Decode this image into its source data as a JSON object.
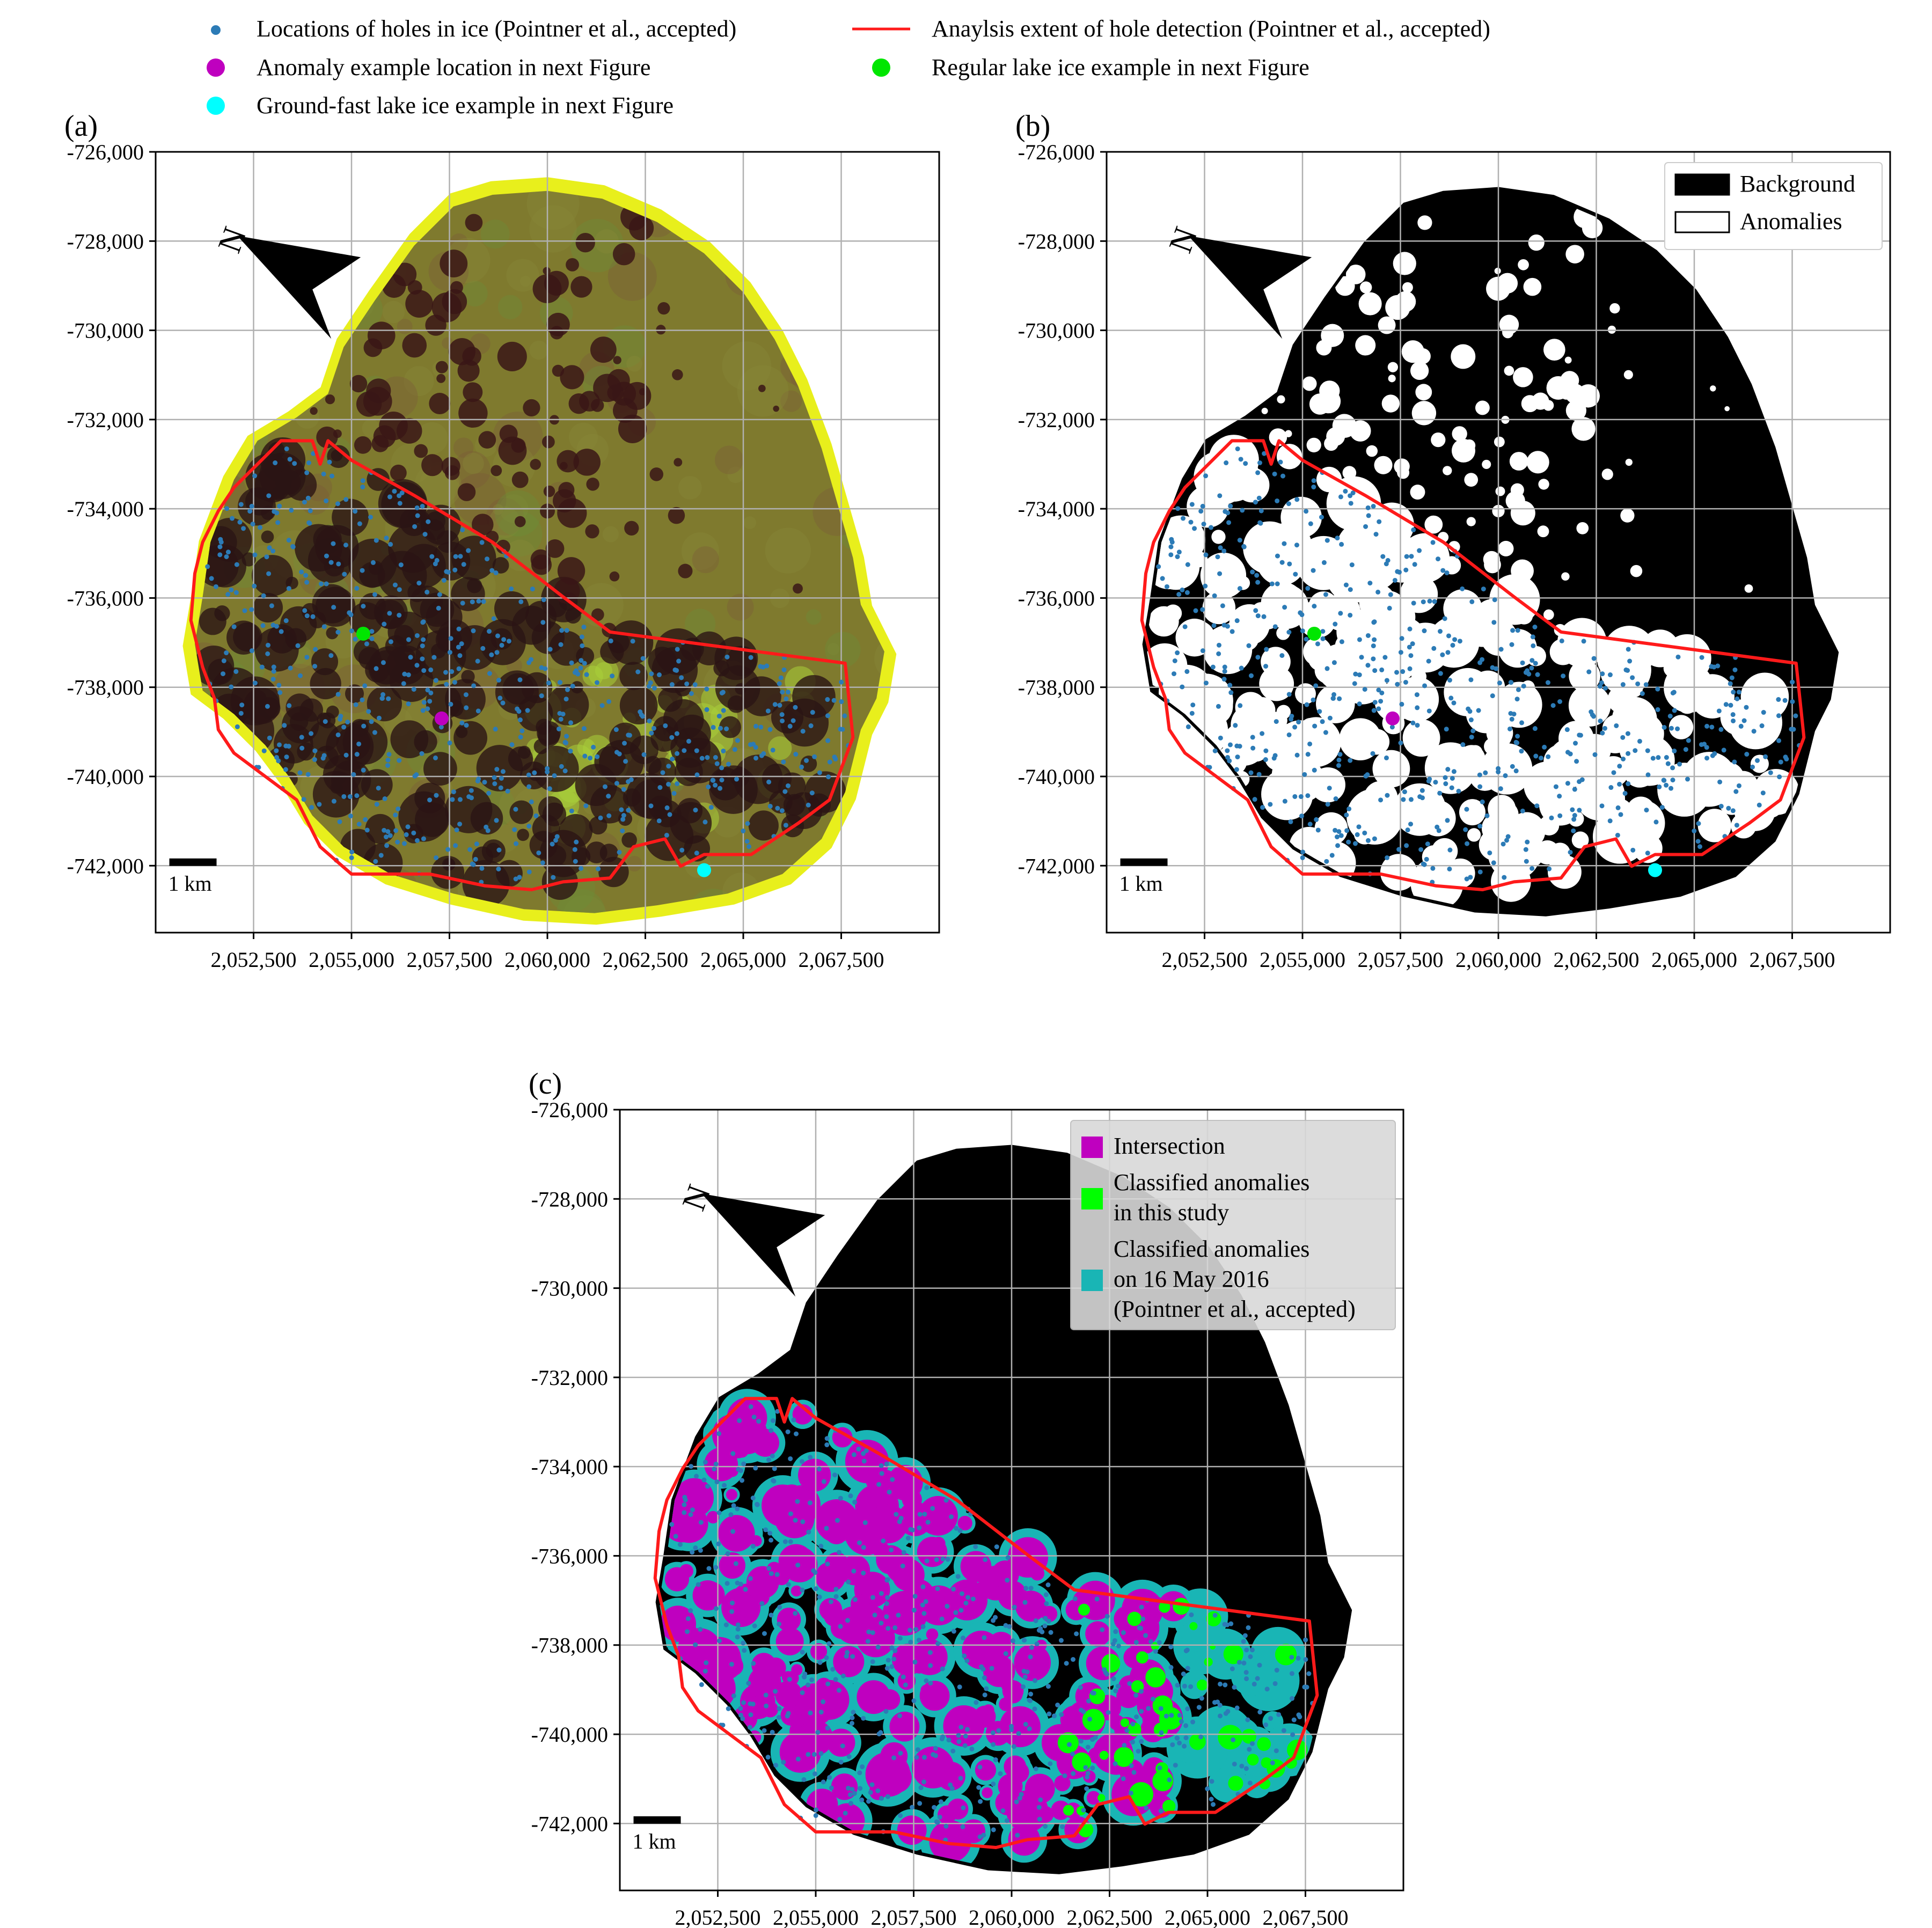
{
  "figure_legend": {
    "items": [
      {
        "label": "Locations of holes in ice (Pointner et al., accepted)",
        "marker": "dot",
        "color": "#2c7bb6"
      },
      {
        "label": "Anaylsis extent of hole detection (Pointner et al., accepted)",
        "marker": "line",
        "color": "#ff1a1a"
      },
      {
        "label": "Anomaly example location in next Figure",
        "marker": "dot",
        "color": "#bf00bf"
      },
      {
        "label": "Regular lake ice example in next Figure",
        "marker": "dot",
        "color": "#00e600"
      },
      {
        "label": "Ground-fast lake ice example in next Figure",
        "marker": "dot",
        "color": "#00ffff"
      }
    ]
  },
  "chart_data": [
    {
      "panel": "(a)",
      "type": "map",
      "background": "rgb composite (yellow/green/dark red)",
      "xlim": [
        2050000,
        2070000
      ],
      "ylim": [
        -743500,
        -726000
      ],
      "xticks": [
        2052500,
        2055000,
        2057500,
        2060000,
        2062500,
        2065000,
        2067500
      ],
      "yticks": [
        -726000,
        -728000,
        -730000,
        -732000,
        -734000,
        -736000,
        -738000,
        -740000,
        -742000
      ],
      "xtick_labels": [
        "2,052,500",
        "2,055,000",
        "2,057,500",
        "2,060,000",
        "2,062,500",
        "2,065,000",
        "2,067,500"
      ],
      "ytick_labels": [
        "-726,000",
        "-728,000",
        "-730,000",
        "-732,000",
        "-734,000",
        "-736,000",
        "-738,000",
        "-740,000",
        "-742,000"
      ],
      "points": [
        {
          "name": "regular-lake-ice",
          "x": 2055300,
          "y": -736800,
          "color": "#00e600"
        },
        {
          "name": "anomaly-example",
          "x": 2057300,
          "y": -738700,
          "color": "#bf00bf"
        },
        {
          "name": "ground-fast-ice",
          "x": 2064000,
          "y": -742100,
          "color": "#00ffff"
        }
      ],
      "scale_bar": "1 km",
      "grid": true
    },
    {
      "panel": "(b)",
      "type": "map",
      "background": "binary classification",
      "xlim": [
        2050000,
        2070000
      ],
      "ylim": [
        -743500,
        -726000
      ],
      "xticks": [
        2052500,
        2055000,
        2057500,
        2060000,
        2062500,
        2065000,
        2067500
      ],
      "yticks": [
        -726000,
        -728000,
        -730000,
        -732000,
        -734000,
        -736000,
        -738000,
        -740000,
        -742000
      ],
      "xtick_labels": [
        "2,052,500",
        "2,055,000",
        "2,057,500",
        "2,060,000",
        "2,062,500",
        "2,065,000",
        "2,067,500"
      ],
      "ytick_labels": [
        "-726,000",
        "-728,000",
        "-730,000",
        "-732,000",
        "-734,000",
        "-736,000",
        "-738,000",
        "-740,000",
        "-742,000"
      ],
      "legend": [
        {
          "label": "Background",
          "color": "#000000"
        },
        {
          "label": "Anomalies",
          "color": "#ffffff"
        }
      ],
      "points": [
        {
          "name": "regular-lake-ice",
          "x": 2055300,
          "y": -736800,
          "color": "#00e600"
        },
        {
          "name": "anomaly-example",
          "x": 2057300,
          "y": -738700,
          "color": "#bf00bf"
        },
        {
          "name": "ground-fast-ice",
          "x": 2064000,
          "y": -742100,
          "color": "#00ffff"
        }
      ],
      "scale_bar": "1 km",
      "grid": true
    },
    {
      "panel": "(c)",
      "type": "map",
      "background": "comparison overlay",
      "xlim": [
        2050000,
        2070000
      ],
      "ylim": [
        -743500,
        -726000
      ],
      "xticks": [
        2052500,
        2055000,
        2057500,
        2060000,
        2062500,
        2065000,
        2067500
      ],
      "yticks": [
        -726000,
        -728000,
        -730000,
        -732000,
        -734000,
        -736000,
        -738000,
        -740000,
        -742000
      ],
      "xtick_labels": [
        "2,052,500",
        "2,055,000",
        "2,057,500",
        "2,060,000",
        "2,062,500",
        "2,065,000",
        "2,067,500"
      ],
      "ytick_labels": [
        "-726,000",
        "-728,000",
        "-730,000",
        "-732,000",
        "-734,000",
        "-736,000",
        "-738,000",
        "-740,000",
        "-742,000"
      ],
      "legend": [
        {
          "label_lines": [
            "Intersection"
          ],
          "color": "#bf00bf"
        },
        {
          "label_lines": [
            "Classified anomalies",
            "in this study"
          ],
          "color": "#00ff00"
        },
        {
          "label_lines": [
            "Classified anomalies",
            "on 16 May 2016",
            "(Pointner et al., accepted)"
          ],
          "color": "#19b5b5"
        }
      ],
      "scale_bar": "1 km",
      "grid": true
    }
  ],
  "colors": {
    "holes": "#2c7bb6",
    "extent": "#ff1a1a",
    "grid": "#b0b0b0",
    "lake_yellow": "#e8ef1c",
    "lake_body": "#7f7a2e",
    "dark_anomaly": "#2a1414",
    "intersection": "#bf00bf",
    "this_study": "#00ff00",
    "pointner": "#19b5b5"
  }
}
